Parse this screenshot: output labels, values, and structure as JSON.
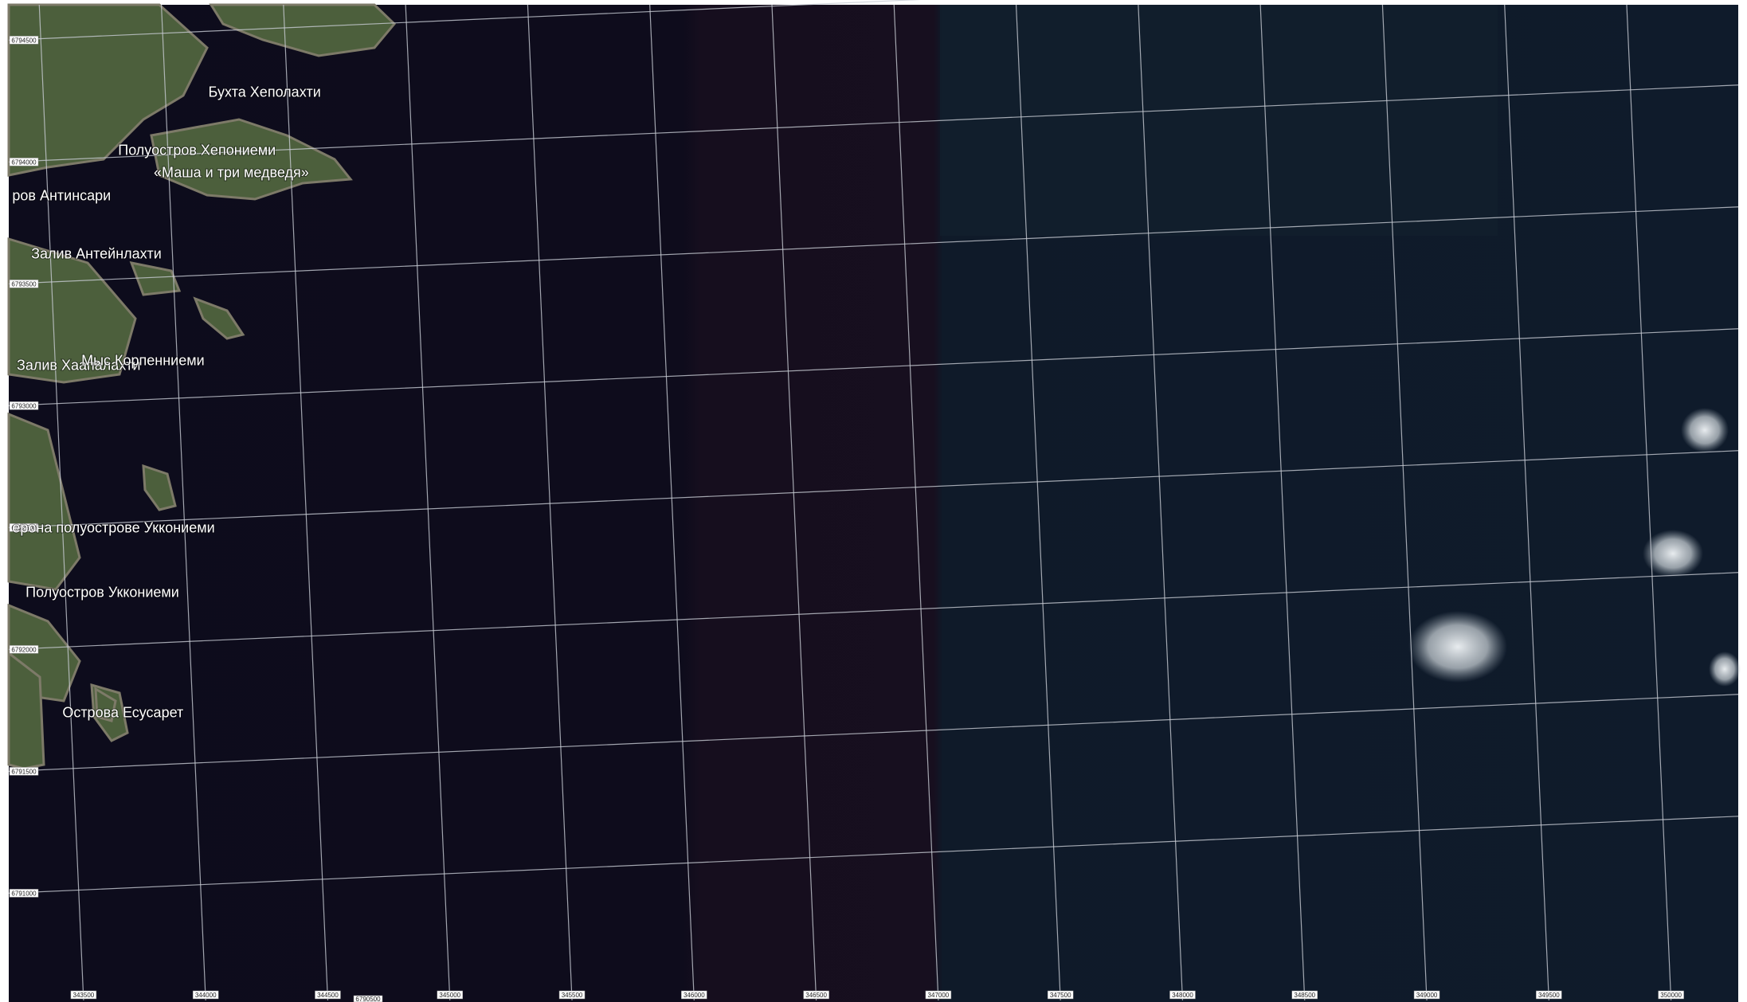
{
  "places": [
    "Бухта Хеполахти",
    "Полуостров Хепониеми",
    "«Маша и три медведя»",
    "ров Антинсари",
    "Залив Антейнлахти",
    "Залив Хаапалахти",
    "Мыс Корпенниеми",
    "ерона полуострове Уккониеми",
    "Полуостров Уккониеми",
    "Острова Есусарет"
  ],
  "grid": {
    "northing": [
      "6794500",
      "6794000",
      "6793500",
      "6793000",
      "6792500",
      "6792000",
      "6791500",
      "6791000"
    ],
    "easting": [
      "343500",
      "344000",
      "344500",
      "345000",
      "345500",
      "346000",
      "346500",
      "347000",
      "347500",
      "348000",
      "348500",
      "349000",
      "349500",
      "350000"
    ],
    "extra": "6790500"
  }
}
